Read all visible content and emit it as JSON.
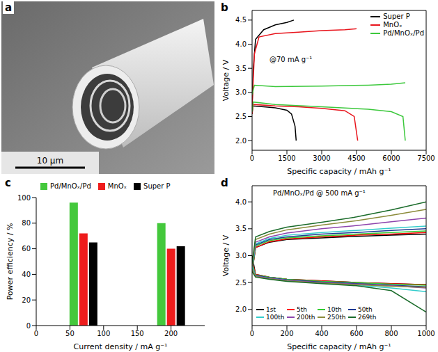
{
  "chart_data": [
    {
      "type": "image",
      "panel": "a",
      "scale_bar": "10 μm"
    },
    {
      "type": "line",
      "panel": "b",
      "annotation": "@70 mA g⁻¹",
      "x_label": "Specific capacity / mAh g⁻¹",
      "y_label": "Voltage / V",
      "legend": "top right",
      "xlim": [
        0,
        7500
      ],
      "xticks": [
        0,
        1500,
        3000,
        4500,
        6000,
        7500
      ],
      "ylim": [
        1.8,
        4.7
      ],
      "yticks": [
        {
          "value": 2,
          "label": "2.0"
        },
        2.5,
        {
          "value": 3,
          "label": "3.0"
        },
        3.5,
        {
          "value": 4,
          "label": "4.0"
        },
        4.5
      ],
      "series": [
        {
          "name": "Super P",
          "color": "#000000",
          "x": [
            0,
            30,
            500,
            1000,
            1500,
            1700,
            1850,
            1900,
            1900,
            0,
            50,
            150,
            500,
            1000,
            1500,
            1800
          ],
          "values": [
            2.55,
            2.72,
            2.7,
            2.68,
            2.63,
            2.55,
            2.3,
            2.0,
            null,
            2.65,
            3.5,
            4.1,
            4.3,
            4.4,
            4.45,
            4.5
          ]
        },
        {
          "name": "MnOₓ",
          "color": "#e8141c",
          "x": [
            0,
            50,
            1000,
            2000,
            3000,
            4000,
            4400,
            4550,
            4550,
            0,
            100,
            300,
            1000,
            2000,
            3000,
            4000,
            4500
          ],
          "values": [
            2.55,
            2.75,
            2.72,
            2.7,
            2.67,
            2.62,
            2.5,
            2.0,
            null,
            2.7,
            3.8,
            4.15,
            4.22,
            4.25,
            4.28,
            4.3,
            4.32
          ]
        },
        {
          "name": "Pd/MnOₓ/Pd",
          "color": "#3cc83c",
          "x": [
            0,
            50,
            1000,
            3000,
            5000,
            6000,
            6500,
            6600,
            6600,
            0,
            100,
            1000,
            3000,
            5000,
            6000,
            6600
          ],
          "values": [
            2.6,
            2.8,
            2.75,
            2.7,
            2.65,
            2.6,
            2.5,
            2.0,
            null,
            2.95,
            3.15,
            3.12,
            3.13,
            3.15,
            3.17,
            3.2
          ]
        }
      ]
    },
    {
      "type": "bar",
      "panel": "c",
      "x_label": "Current density / mA g⁻¹",
      "y_label": "Power efficiency / %",
      "legend": "top",
      "x": [
        70,
        200
      ],
      "xlim": [
        0,
        250
      ],
      "xticks": [
        0,
        50,
        100,
        150,
        200
      ],
      "ylim": [
        0,
        100
      ],
      "yticks": [
        0,
        20,
        40,
        60,
        80,
        100
      ],
      "series": [
        {
          "name": "Pd/MnOₓ/Pd",
          "color": "#44c83c",
          "values": [
            96,
            80
          ]
        },
        {
          "name": "MnOₓ",
          "color": "#ee1c1c",
          "values": [
            72,
            60
          ]
        },
        {
          "name": "Super P",
          "color": "#000000",
          "values": [
            65,
            62
          ]
        }
      ]
    },
    {
      "type": "line",
      "panel": "d",
      "annotation": "Pd/MnOₓ/Pd @ 500 mA g⁻¹",
      "x_label": "Specific capacity / mAh g⁻¹",
      "y_label": "Voltage / V",
      "legend": "bottom left",
      "xlim": [
        0,
        1000
      ],
      "xticks": [
        0,
        200,
        400,
        600,
        800,
        1000
      ],
      "ylim": [
        1.7,
        4.3
      ],
      "yticks": [
        {
          "value": 2,
          "label": "2.0"
        },
        2.5,
        {
          "value": 3,
          "label": "3.0"
        },
        3.5,
        {
          "value": 4,
          "label": "4.0"
        }
      ],
      "series": [
        {
          "name": "1st",
          "color": "#000000",
          "x": [
            0,
            20,
            100,
            200,
            400,
            600,
            800,
            1000,
            1000,
            0,
            20,
            100,
            200,
            400,
            600,
            800,
            1000
          ],
          "values": [
            3.0,
            2.65,
            2.6,
            2.56,
            2.53,
            2.5,
            2.48,
            2.46,
            null,
            2.7,
            3.15,
            3.25,
            3.3,
            3.33,
            3.36,
            3.38,
            3.4
          ]
        },
        {
          "name": "5th",
          "color": "#ff0000",
          "x": [
            0,
            20,
            100,
            200,
            400,
            600,
            800,
            1000,
            1000,
            0,
            20,
            100,
            200,
            400,
            600,
            800,
            1000
          ],
          "values": [
            2.9,
            2.65,
            2.6,
            2.56,
            2.53,
            2.5,
            2.48,
            2.46,
            null,
            2.7,
            3.15,
            3.26,
            3.31,
            3.35,
            3.38,
            3.4,
            3.43
          ]
        },
        {
          "name": "10th",
          "color": "#33cc33",
          "x": [
            0,
            20,
            100,
            200,
            400,
            600,
            800,
            1000,
            1000,
            0,
            20,
            100,
            200,
            400,
            600,
            800,
            1000
          ],
          "values": [
            2.85,
            2.64,
            2.6,
            2.56,
            2.52,
            2.5,
            2.47,
            2.45,
            null,
            2.7,
            3.18,
            3.28,
            3.33,
            3.37,
            3.4,
            3.43,
            3.46
          ]
        },
        {
          "name": "50th",
          "color": "#1f3a93",
          "x": [
            0,
            20,
            100,
            200,
            400,
            600,
            800,
            1000,
            1000,
            0,
            20,
            100,
            200,
            400,
            600,
            800,
            1000
          ],
          "values": [
            2.8,
            2.63,
            2.59,
            2.55,
            2.51,
            2.48,
            2.45,
            2.42,
            null,
            2.75,
            3.2,
            3.3,
            3.35,
            3.4,
            3.43,
            3.47,
            3.5
          ]
        },
        {
          "name": "100th",
          "color": "#33cccc",
          "x": [
            0,
            20,
            100,
            200,
            400,
            600,
            800,
            1000,
            1000,
            0,
            20,
            100,
            200,
            400,
            600,
            800,
            1000
          ],
          "values": [
            2.8,
            2.62,
            2.58,
            2.54,
            2.49,
            2.45,
            2.4,
            2.33,
            null,
            2.75,
            3.22,
            3.32,
            3.38,
            3.43,
            3.47,
            3.51,
            3.55
          ]
        },
        {
          "name": "200th",
          "color": "#8e44ad",
          "x": [
            0,
            20,
            100,
            200,
            400,
            600,
            800,
            1000,
            1000,
            0,
            20,
            100,
            200,
            400,
            600,
            800,
            1000
          ],
          "values": [
            2.75,
            2.62,
            2.58,
            2.54,
            2.5,
            2.47,
            2.44,
            2.4,
            null,
            2.8,
            3.25,
            3.35,
            3.42,
            3.5,
            3.56,
            3.63,
            3.7
          ]
        },
        {
          "name": "250th",
          "color": "#8b8b3a",
          "x": [
            0,
            20,
            100,
            200,
            400,
            600,
            800,
            1000,
            1000,
            0,
            20,
            100,
            200,
            400,
            600,
            800,
            1000
          ],
          "values": [
            2.75,
            2.61,
            2.57,
            2.53,
            2.49,
            2.46,
            2.43,
            2.41,
            null,
            2.8,
            3.3,
            3.4,
            3.48,
            3.57,
            3.65,
            3.75,
            3.86
          ]
        },
        {
          "name": "269th",
          "color": "#1a6b2a",
          "x": [
            0,
            20,
            100,
            200,
            400,
            600,
            800,
            1000,
            1000,
            0,
            20,
            100,
            200,
            400,
            600,
            800,
            1000
          ],
          "values": [
            2.7,
            2.6,
            2.56,
            2.52,
            2.48,
            2.44,
            2.35,
            1.95,
            null,
            2.85,
            3.35,
            3.45,
            3.53,
            3.62,
            3.72,
            3.85,
            4.0
          ]
        }
      ]
    }
  ]
}
